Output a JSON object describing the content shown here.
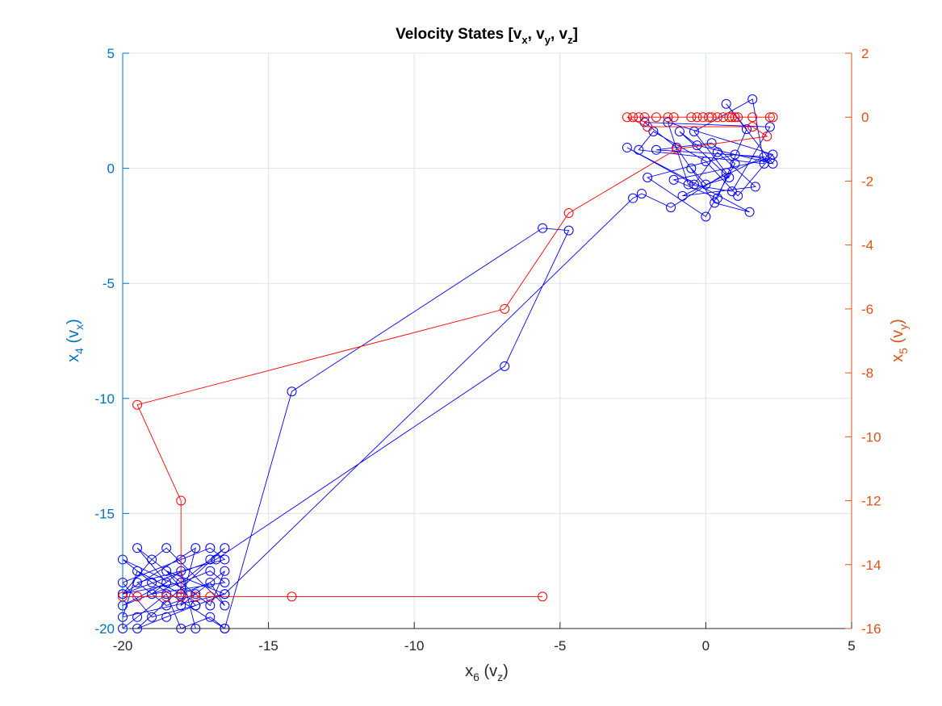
{
  "chart_data": {
    "type": "scatter",
    "title": {
      "base": "Velocity States [v",
      "s1": "x",
      "m1": ", v",
      "s2": "y",
      "m2": ", v",
      "s3": "z",
      "end": "]"
    },
    "xlabel": {
      "base": "x",
      "sub": "6",
      "rest": " (v",
      "sub2": "z",
      "end": ")"
    },
    "ylabel_left": {
      "base": "x",
      "sub": "4",
      "rest": " (v",
      "sub2": "x",
      "end": ")"
    },
    "ylabel_right": {
      "base": "x",
      "sub": "5",
      "rest": " (v",
      "sub2": "y",
      "end": ")"
    },
    "xlim": [
      -20,
      5
    ],
    "ylim_left": [
      -20,
      5
    ],
    "ylim_right": [
      -16,
      2
    ],
    "xticks": [
      -20,
      -15,
      -10,
      -5,
      0,
      5
    ],
    "yticks_left": [
      -20,
      -15,
      -10,
      -5,
      0,
      5
    ],
    "yticks_right": [
      -16,
      -14,
      -12,
      -10,
      -8,
      -6,
      -4,
      -2,
      0,
      2
    ],
    "grid": true,
    "colors": {
      "left_axis": "#0072BD",
      "right_axis": "#D95319",
      "series_left": "#0000FF",
      "series_right": "#FF0000",
      "grid": "#DCE3EC",
      "axis": "#262626"
    },
    "series": [
      {
        "axis": "left",
        "marker": "circle",
        "x": [
          -20.0,
          -19.5,
          -18.5,
          -18.0,
          -17.0,
          -16.5,
          -19.0,
          -20.0,
          -17.5,
          -18.5,
          -19.5,
          -16.5,
          -17.0,
          -18.0,
          -20.0,
          -19.0,
          -17.5,
          -18.5,
          -16.5,
          -20.0,
          -19.5,
          -18.0,
          -17.0,
          -16.5,
          -18.5,
          -19.0,
          -20.0,
          -17.5,
          -18.0,
          -16.5,
          -17.0,
          -19.5,
          -18.5,
          -20.0,
          -17.0,
          -16.5,
          -19.0,
          -18.0,
          -17.5,
          -16.5,
          -14.2,
          -5.6,
          -4.7,
          -6.9,
          -16.8,
          -20.0,
          -18.0,
          -17.0,
          -16.5,
          -19.5,
          -18.5,
          -17.5,
          -16.5,
          -2.5,
          -2.2,
          -1.2,
          0.7,
          -0.4,
          1.6,
          2.0,
          -2.3,
          -1.8,
          0.0,
          1.1,
          2.3,
          -1.3,
          -0.6,
          0.9,
          2.2,
          -2.1,
          -1.0,
          0.3,
          1.5,
          -2.7,
          -0.4,
          0.4,
          1.7,
          -0.8,
          2.0,
          -1.7,
          0.2,
          1.0,
          0.0,
          -2.0,
          1.0,
          2.2,
          -1.1,
          0.4,
          1.4,
          0.7,
          2.3,
          -0.3,
          -0.9,
          0.8,
          0.0,
          -0.5
        ],
        "y": [
          -20.0,
          -19.5,
          -18.5,
          -20.0,
          -19.5,
          -20.0,
          -18.0,
          -17.0,
          -18.5,
          -19.0,
          -18.0,
          -17.0,
          -16.5,
          -17.0,
          -18.0,
          -19.5,
          -19.0,
          -17.5,
          -18.5,
          -19.5,
          -17.5,
          -18.5,
          -18.0,
          -19.0,
          -16.5,
          -17.0,
          -18.5,
          -16.5,
          -19.0,
          -17.5,
          -19.0,
          -16.5,
          -18.0,
          -19.0,
          -17.5,
          -18.0,
          -18.5,
          -17.5,
          -20.0,
          -20.0,
          -9.7,
          -2.6,
          -2.7,
          -8.6,
          -17.0,
          -18.5,
          -18.0,
          -17.0,
          -16.5,
          -20.0,
          -19.5,
          -19.0,
          -18.5,
          -1.3,
          -1.1,
          -1.7,
          -0.2,
          1.6,
          3.0,
          0.2,
          0.8,
          1.6,
          0.3,
          -1.2,
          0.6,
          2.0,
          -0.7,
          -1.0,
          1.8,
          2.0,
          0.9,
          -1.5,
          -1.9,
          0.9,
          -0.7,
          0.7,
          -0.8,
          -1.2,
          0.5,
          0.8,
          1.1,
          0.2,
          -2.1,
          -0.4,
          0.6,
          0.4,
          -0.5,
          -1.3,
          1.7,
          2.8,
          0.2,
          1.0,
          1.6,
          -0.4,
          -0.7,
          0.0
        ]
      },
      {
        "axis": "right",
        "marker": "circle",
        "x": [
          -5.6,
          -14.2,
          -17.5,
          -18.0,
          -18.5,
          -19.5,
          -20.0,
          -17.0,
          -18.0,
          -18.0,
          -19.5,
          -6.9,
          -4.7,
          -1.0,
          2.1,
          1.6,
          -2.0,
          -2.7,
          -2.5,
          -2.3,
          -2.1,
          -1.7,
          -1.3,
          -1.1,
          -0.5,
          -0.3,
          -0.1,
          0.1,
          0.2,
          0.4,
          0.6,
          0.8,
          0.9,
          1.0,
          1.1,
          1.6,
          2.2,
          2.3
        ],
        "y": [
          -15.0,
          -15.0,
          -15.0,
          -15.0,
          -15.0,
          -15.0,
          -15.0,
          -15.0,
          -15.0,
          -12.0,
          -9.0,
          -6.0,
          -3.0,
          -1.0,
          -0.6,
          -0.3,
          -0.3,
          0.0,
          0.0,
          0.0,
          0.0,
          0.0,
          0.0,
          0.0,
          0.0,
          0.0,
          0.0,
          0.0,
          0.0,
          0.0,
          0.0,
          0.0,
          0.0,
          0.0,
          0.0,
          0.0,
          0.0,
          0.0
        ]
      }
    ]
  }
}
